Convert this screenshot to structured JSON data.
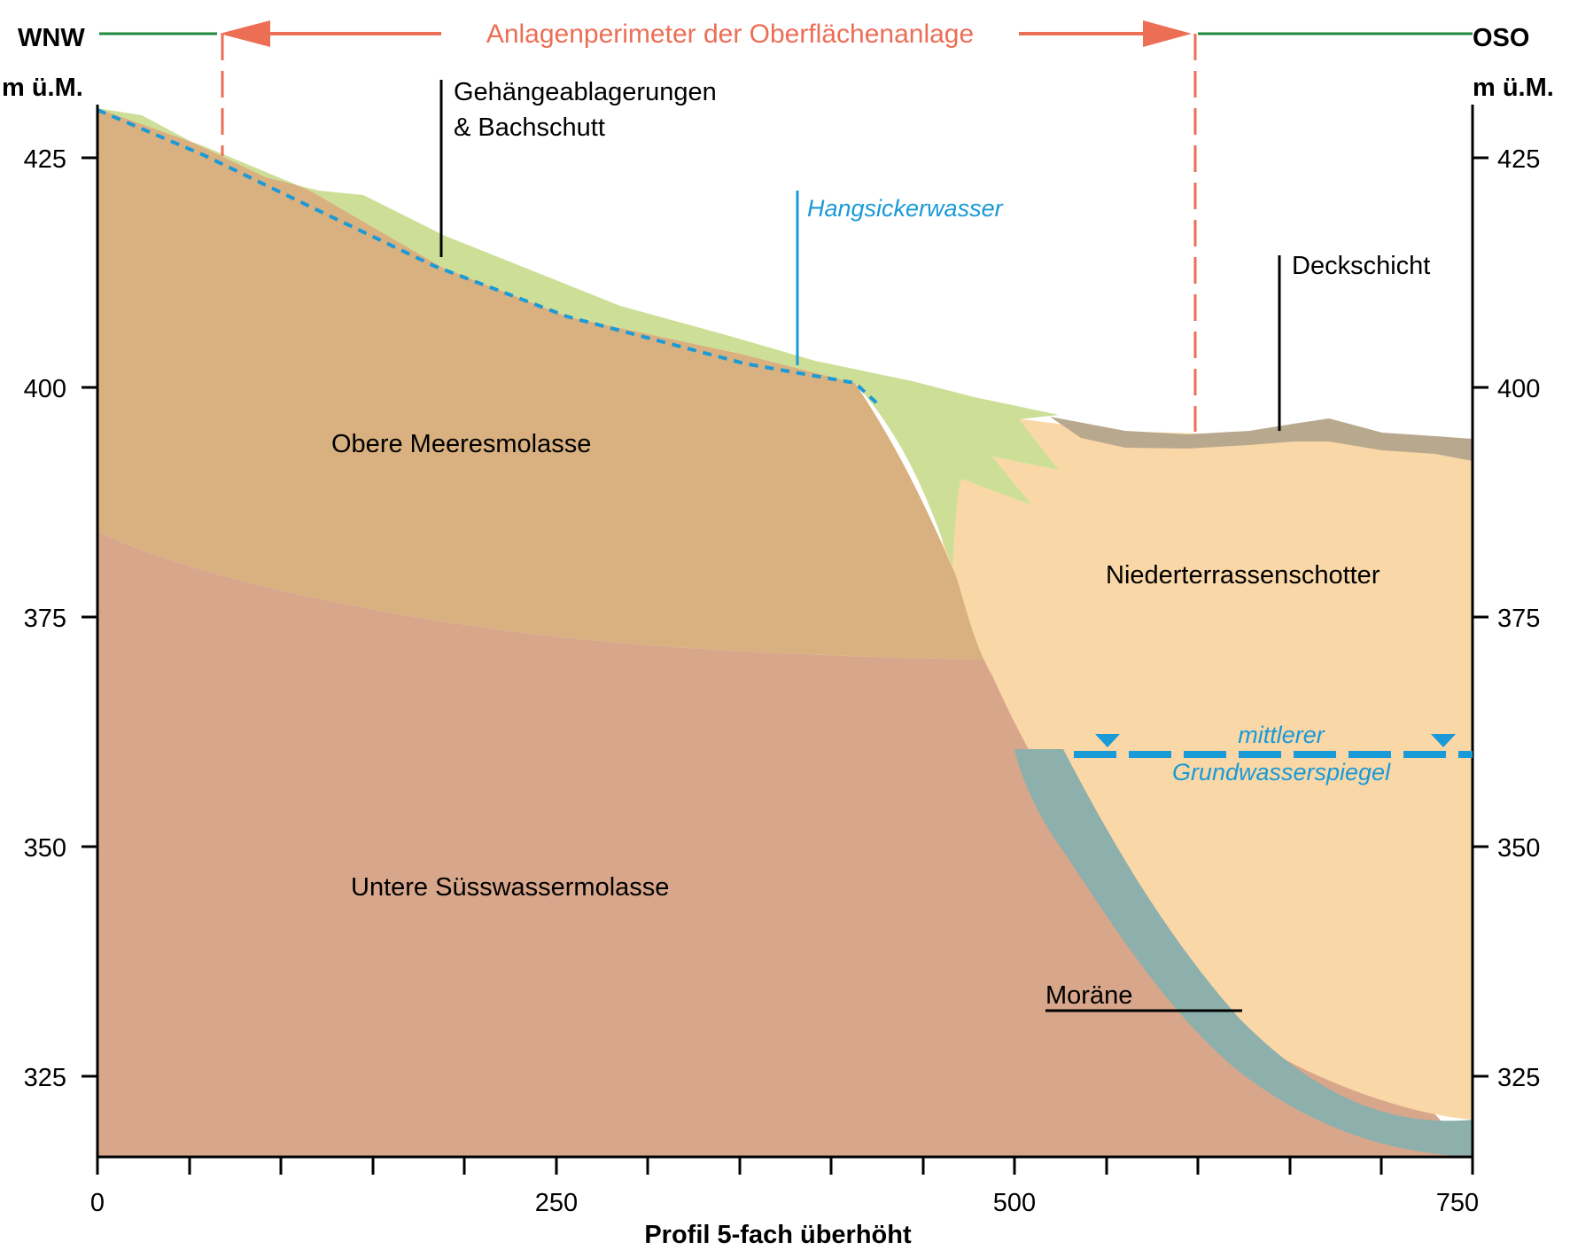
{
  "header": {
    "west": "WNW",
    "east": "OSO",
    "perimeter": "Anlagenperimeter der Oberflächenanlage"
  },
  "axes": {
    "y_unit_left": "m ü.M.",
    "y_unit_right": "m ü.M.",
    "x_label": "Profil 5-fach überhöht",
    "x_ticks": [
      "0",
      "250",
      "500",
      "750"
    ],
    "y_ticks": [
      "425",
      "400",
      "375",
      "350",
      "325"
    ]
  },
  "units": {
    "obere_meeresmolasse": "Obere Meeresmolasse",
    "untere_suesswassermolasse": "Untere Süsswassermolasse",
    "niederterrassenschotter": "Niederterrassenschotter",
    "moraene": "Moräne",
    "gehaenge_line1": "Gehängeablagerungen",
    "gehaenge_line2": "& Bachschutt",
    "deckschicht": "Deckschicht"
  },
  "water": {
    "hangsickerwasser": "Hangsickerwasser",
    "gw_line1": "mittlerer",
    "gw_line2": "Grundwasserspiegel"
  },
  "colors": {
    "obere_meeresmolasse": "#d9b07f",
    "untere_suesswassermolasse": "#d8a68b",
    "niederterrassenschotter": "#fad7a7",
    "gehaenge": "#cddf96",
    "deckschicht": "#b8a98e",
    "moraene": "#8db0ad",
    "water": "#1a9ad7",
    "perimeter": "#ec6e55",
    "green_line": "#1f8a3c"
  }
}
